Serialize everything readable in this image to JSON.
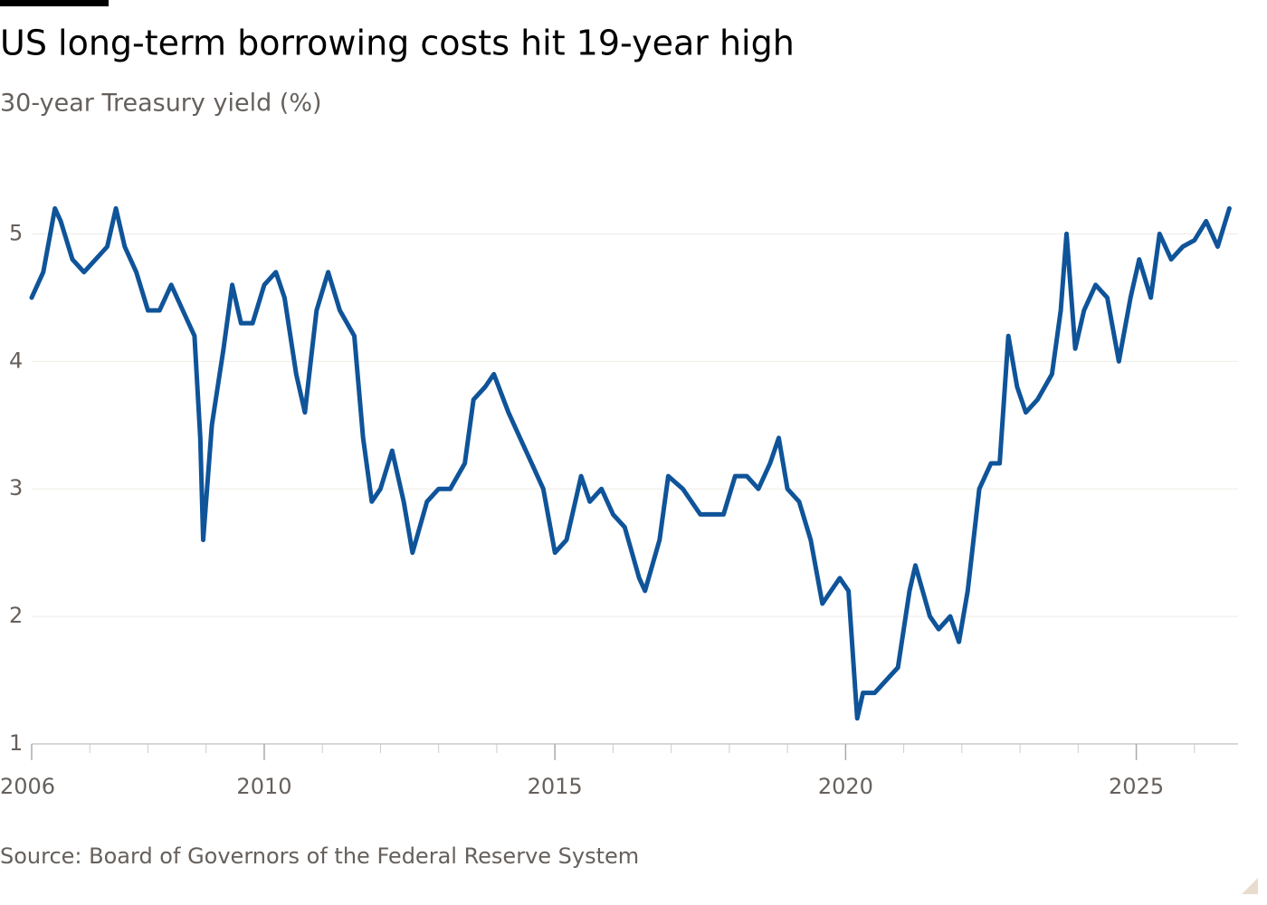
{
  "chart_data": {
    "type": "line",
    "title": "US long-term borrowing costs hit 19-year high",
    "subtitle": "30-year Treasury yield (%)",
    "source": "Source: Board of Governors of the Federal Reserve System",
    "xlim": [
      2006,
      2026.75
    ],
    "xticks": [
      2006,
      2010,
      2015,
      2020,
      2025
    ],
    "xminor_ticks": [
      2007,
      2008,
      2009,
      2011,
      2012,
      2013,
      2014,
      2016,
      2017,
      2018,
      2019,
      2021,
      2022,
      2023,
      2024,
      2026
    ],
    "ylim": [
      1,
      5.5
    ],
    "yticks": [
      1,
      2,
      3,
      4,
      5
    ],
    "grid": true,
    "x": [
      2006.0,
      2006.2,
      2006.4,
      2006.5,
      2006.7,
      2006.9,
      2007.1,
      2007.3,
      2007.45,
      2007.6,
      2007.8,
      2008.0,
      2008.2,
      2008.4,
      2008.6,
      2008.8,
      2008.9,
      2008.95,
      2009.1,
      2009.3,
      2009.45,
      2009.6,
      2009.8,
      2010.0,
      2010.2,
      2010.35,
      2010.55,
      2010.7,
      2010.9,
      2011.1,
      2011.3,
      2011.55,
      2011.7,
      2011.85,
      2012.0,
      2012.2,
      2012.4,
      2012.55,
      2012.8,
      2013.0,
      2013.2,
      2013.45,
      2013.6,
      2013.8,
      2013.95,
      2014.2,
      2014.4,
      2014.6,
      2014.8,
      2015.0,
      2015.2,
      2015.45,
      2015.6,
      2015.8,
      2016.0,
      2016.2,
      2016.45,
      2016.55,
      2016.8,
      2016.95,
      2017.2,
      2017.5,
      2017.7,
      2017.9,
      2018.1,
      2018.3,
      2018.5,
      2018.7,
      2018.85,
      2019.0,
      2019.2,
      2019.4,
      2019.6,
      2019.75,
      2019.9,
      2020.05,
      2020.2,
      2020.3,
      2020.5,
      2020.7,
      2020.9,
      2021.1,
      2021.2,
      2021.45,
      2021.6,
      2021.8,
      2021.95,
      2022.1,
      2022.3,
      2022.5,
      2022.65,
      2022.8,
      2022.95,
      2023.1,
      2023.3,
      2023.55,
      2023.7,
      2023.8,
      2023.95,
      2024.1,
      2024.3,
      2024.5,
      2024.7,
      2024.9,
      2025.05,
      2025.25,
      2025.4,
      2025.6,
      2025.8,
      2026.0,
      2026.2,
      2026.4,
      2026.6
    ],
    "series": [
      {
        "name": "30-year Treasury yield",
        "color": "#0f5499",
        "values": [
          4.5,
          4.7,
          5.2,
          5.1,
          4.8,
          4.7,
          4.8,
          4.9,
          5.2,
          4.9,
          4.7,
          4.4,
          4.4,
          4.6,
          4.4,
          4.2,
          3.4,
          2.6,
          3.5,
          4.1,
          4.6,
          4.3,
          4.3,
          4.6,
          4.7,
          4.5,
          3.9,
          3.6,
          4.4,
          4.7,
          4.4,
          4.2,
          3.4,
          2.9,
          3.0,
          3.3,
          2.9,
          2.5,
          2.9,
          3.0,
          3.0,
          3.2,
          3.7,
          3.8,
          3.9,
          3.6,
          3.4,
          3.2,
          3.0,
          2.5,
          2.6,
          3.1,
          2.9,
          3.0,
          2.8,
          2.7,
          2.3,
          2.2,
          2.6,
          3.1,
          3.0,
          2.8,
          2.8,
          2.8,
          3.1,
          3.1,
          3.0,
          3.2,
          3.4,
          3.0,
          2.9,
          2.6,
          2.1,
          2.2,
          2.3,
          2.2,
          1.2,
          1.4,
          1.4,
          1.5,
          1.6,
          2.2,
          2.4,
          2.0,
          1.9,
          2.0,
          1.8,
          2.2,
          3.0,
          3.2,
          3.2,
          4.2,
          3.8,
          3.6,
          3.7,
          3.9,
          4.4,
          5.0,
          4.1,
          4.4,
          4.6,
          4.5,
          4.0,
          4.5,
          4.8,
          4.5,
          5.0,
          4.8,
          4.9,
          4.95,
          5.1,
          4.9,
          5.2
        ]
      }
    ]
  }
}
